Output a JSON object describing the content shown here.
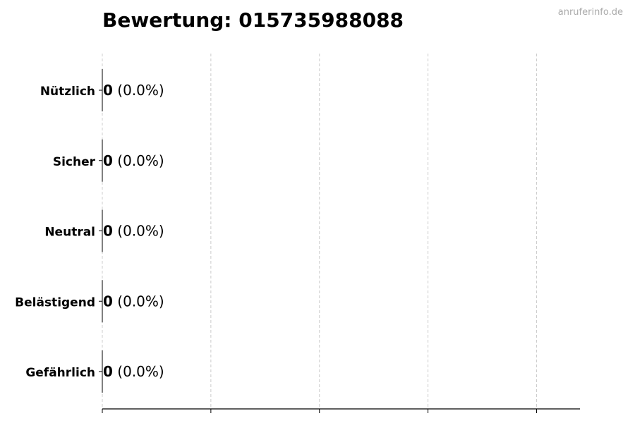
{
  "chart_data": {
    "type": "bar",
    "orientation": "horizontal",
    "title": "Bewertung: 015735988088",
    "watermark": "anruferinfo.de",
    "categories": [
      "Nützlich",
      "Sicher",
      "Neutral",
      "Belästigend",
      "Gefährlich"
    ],
    "values": [
      0,
      0,
      0,
      0,
      0
    ],
    "labels": [
      {
        "count": "0",
        "percent": "(0.0%)"
      },
      {
        "count": "0",
        "percent": "(0.0%)"
      },
      {
        "count": "0",
        "percent": "(0.0%)"
      },
      {
        "count": "0",
        "percent": "(0.0%)"
      },
      {
        "count": "0",
        "percent": "(0.0%)"
      }
    ],
    "xlim": [
      0,
      4.4
    ],
    "xticks": [
      0,
      1,
      2,
      3,
      4
    ],
    "xtick_labels_shown": false,
    "grid": "x, dashed",
    "colors": {
      "grid": "#cccccc",
      "axis": "#000000",
      "bar_edge": "#000000",
      "watermark": "#aaaaaa"
    }
  }
}
